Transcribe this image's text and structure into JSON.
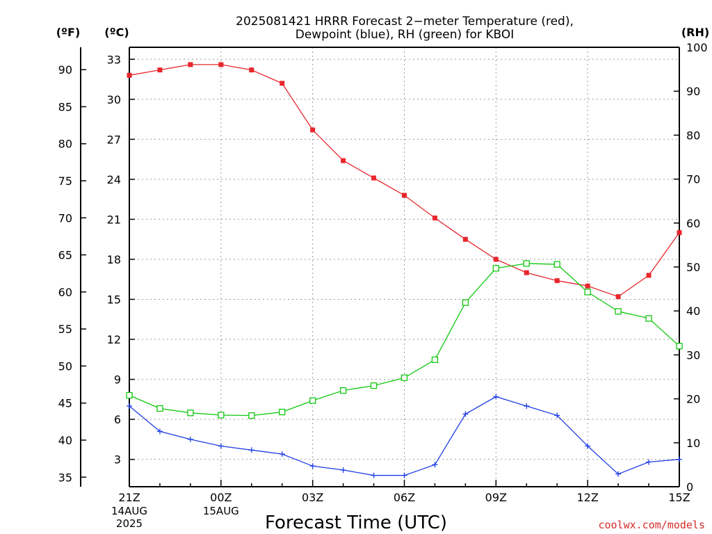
{
  "chart_data": {
    "type": "line",
    "title": "2025081421 HRRR Forecast 2−meter Temperature (red),",
    "subtitle": "Dewpoint (blue), RH (green) for KBOI",
    "xlabel": "Forecast Time (UTC)",
    "units": {
      "fahrenheit": "(ºF)",
      "celsius": "(ºC)",
      "rh": "(RH)"
    },
    "x_ticks": [
      "21Z",
      "00Z",
      "03Z",
      "06Z",
      "09Z",
      "12Z",
      "15Z"
    ],
    "x_tick_hours": [
      0,
      3,
      6,
      9,
      12,
      15,
      18
    ],
    "x_date_labels": [
      {
        "hour": 0,
        "lines": [
          "14AUG",
          "2025"
        ]
      },
      {
        "hour": 3,
        "lines": [
          "15AUG"
        ]
      }
    ],
    "x_range_hours": [
      0,
      18
    ],
    "celsius_ticks": [
      3,
      6,
      9,
      12,
      15,
      18,
      21,
      24,
      27,
      30,
      33
    ],
    "fahrenheit_ticks": [
      35,
      40,
      45,
      50,
      55,
      60,
      65,
      70,
      75,
      80,
      85,
      90
    ],
    "rh_ticks": [
      0,
      10,
      20,
      30,
      40,
      50,
      60,
      70,
      80,
      90,
      100
    ],
    "ylim_celsius": [
      0.95,
      33.9
    ],
    "ylim_rh": [
      0,
      100
    ],
    "grid": true,
    "colors": {
      "temperature": "#e8262d",
      "dewpoint": "#1f3ee6",
      "rh": "#10c810"
    },
    "series": [
      {
        "color_key": "temperature",
        "marker": "filled-square",
        "axis": "celsius",
        "values": [
          31.8,
          32.2,
          32.6,
          32.6,
          32.2,
          31.2,
          27.7,
          25.4,
          24.1,
          22.8,
          21.1,
          19.5,
          18.0,
          17.0,
          16.4,
          16.0,
          15.2,
          16.8,
          20.0
        ]
      },
      {
        "color_key": "dewpoint",
        "marker": "plus",
        "axis": "celsius",
        "values": [
          7.0,
          5.1,
          4.5,
          4.0,
          3.7,
          3.4,
          2.5,
          2.2,
          1.8,
          1.8,
          2.6,
          6.4,
          7.7,
          7.0,
          6.3,
          4.0,
          1.9,
          2.8,
          3.0
        ]
      },
      {
        "color_key": "rh",
        "marker": "open-square",
        "axis": "rh",
        "values": [
          20.8,
          17.8,
          16.8,
          16.3,
          16.2,
          17.0,
          19.6,
          21.9,
          23.0,
          24.8,
          28.9,
          41.9,
          49.7,
          50.8,
          50.6,
          44.3,
          39.9,
          38.3,
          32.0
        ]
      }
    ]
  },
  "credit": "coolwx.com/models"
}
